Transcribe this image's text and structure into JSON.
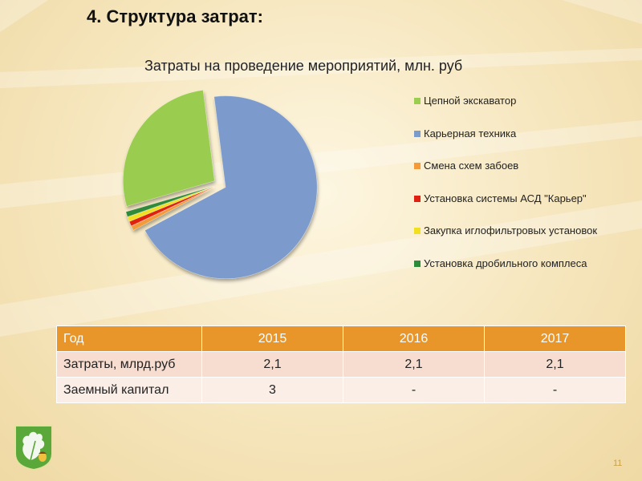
{
  "slide": {
    "title": "4. Структура затрат:",
    "page_number": "11"
  },
  "chart_data": {
    "type": "pie",
    "title": "Затраты на проведение мероприятий, млн. руб",
    "legend_position": "right",
    "categories": [
      "Цепной экскаватор",
      "Карьерная техника",
      "Смена схем забоев",
      "Установка системы АСД \"Карьер\"",
      "Закупка иглофильтровых установок",
      "Установка дробильного комплеса"
    ],
    "values": [
      27.5,
      69.2,
      0.8,
      0.8,
      0.8,
      0.9
    ],
    "colors": [
      "#9acd50",
      "#7c9bcc",
      "#f39a3a",
      "#e02010",
      "#f0e020",
      "#2e8b3a"
    ],
    "exploded": true
  },
  "table": {
    "headers": [
      "Год",
      "2015",
      "2016",
      "2017"
    ],
    "rows": [
      {
        "label": "Затраты, млрд.руб",
        "values": [
          "2,1",
          "2,1",
          "2,1"
        ]
      },
      {
        "label": "Заемный капитал",
        "values": [
          "3",
          "-",
          "-"
        ]
      }
    ]
  }
}
